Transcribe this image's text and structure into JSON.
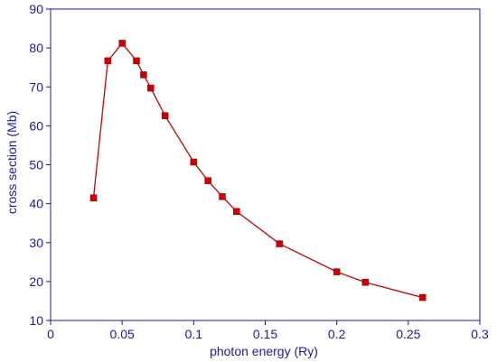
{
  "chart_data": {
    "type": "line",
    "title": "",
    "xlabel": "photon energy (Ry)",
    "ylabel": "cross section (Mb)",
    "xlim": [
      0,
      0.3
    ],
    "ylim": [
      10,
      90
    ],
    "xticks": [
      0,
      0.05,
      0.1,
      0.15,
      0.2,
      0.25,
      0.3
    ],
    "xtick_labels": [
      "0",
      "0.05",
      "0.1",
      "0.15",
      "0.2",
      "0.25",
      "0.3"
    ],
    "yticks": [
      10,
      20,
      30,
      40,
      50,
      60,
      70,
      80,
      90
    ],
    "ytick_labels": [
      "10",
      "20",
      "30",
      "40",
      "50",
      "60",
      "70",
      "80",
      "90"
    ],
    "grid": false,
    "legend": "none",
    "series": [
      {
        "marker": "square",
        "x": [
          0.03,
          0.04,
          0.05,
          0.06,
          0.065,
          0.07,
          0.08,
          0.1,
          0.11,
          0.12,
          0.13,
          0.16,
          0.2,
          0.22,
          0.26
        ],
        "y": [
          41.5,
          76.7,
          81.2,
          76.7,
          73.1,
          69.7,
          62.6,
          50.7,
          45.9,
          41.8,
          38.0,
          29.7,
          22.5,
          19.8,
          15.9
        ]
      }
    ],
    "colors": {
      "series": "#cc0000",
      "axes": "#1a1aa6",
      "text": "#1a1aa6"
    }
  }
}
